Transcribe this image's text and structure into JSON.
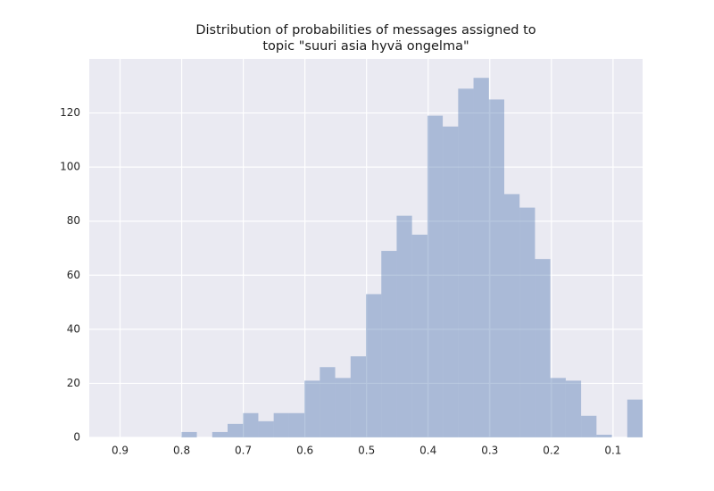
{
  "chart_data": {
    "type": "histogram",
    "title": [
      "Distribution of probabilities of messages assigned to",
      "topic \"suuri asia hyvä ongelma\""
    ],
    "bins": [
      0.052,
      0.0769,
      0.1019,
      0.1268,
      0.1518,
      0.1767,
      0.2017,
      0.2266,
      0.2516,
      0.2765,
      0.3014,
      0.3264,
      0.3513,
      0.3763,
      0.4012,
      0.4262,
      0.4511,
      0.476,
      0.501,
      0.5259,
      0.5509,
      0.5758,
      0.6008,
      0.6257,
      0.6507,
      0.6756,
      0.7005,
      0.7255,
      0.7504,
      0.7754,
      0.8003,
      0.8253,
      0.8502,
      0.8751,
      0.9001,
      0.925,
      0.95
    ],
    "values": [
      14,
      0,
      1,
      8,
      21,
      22,
      66,
      85,
      90,
      125,
      133,
      129,
      115,
      119,
      75,
      82,
      69,
      53,
      30,
      22,
      26,
      21,
      9,
      9,
      6,
      9,
      5,
      2,
      0,
      2,
      0,
      0,
      0,
      0,
      0,
      0
    ],
    "color": "#4c72b0",
    "alpha": 0.4,
    "xlim": [
      0.95,
      0.052
    ],
    "xticks": [
      0.9,
      0.8,
      0.7,
      0.6,
      0.5,
      0.4,
      0.3,
      0.2,
      0.1
    ],
    "ylim": [
      0,
      140
    ],
    "yticks": [
      0,
      20,
      40,
      60,
      80,
      100,
      120
    ],
    "grid": true
  }
}
